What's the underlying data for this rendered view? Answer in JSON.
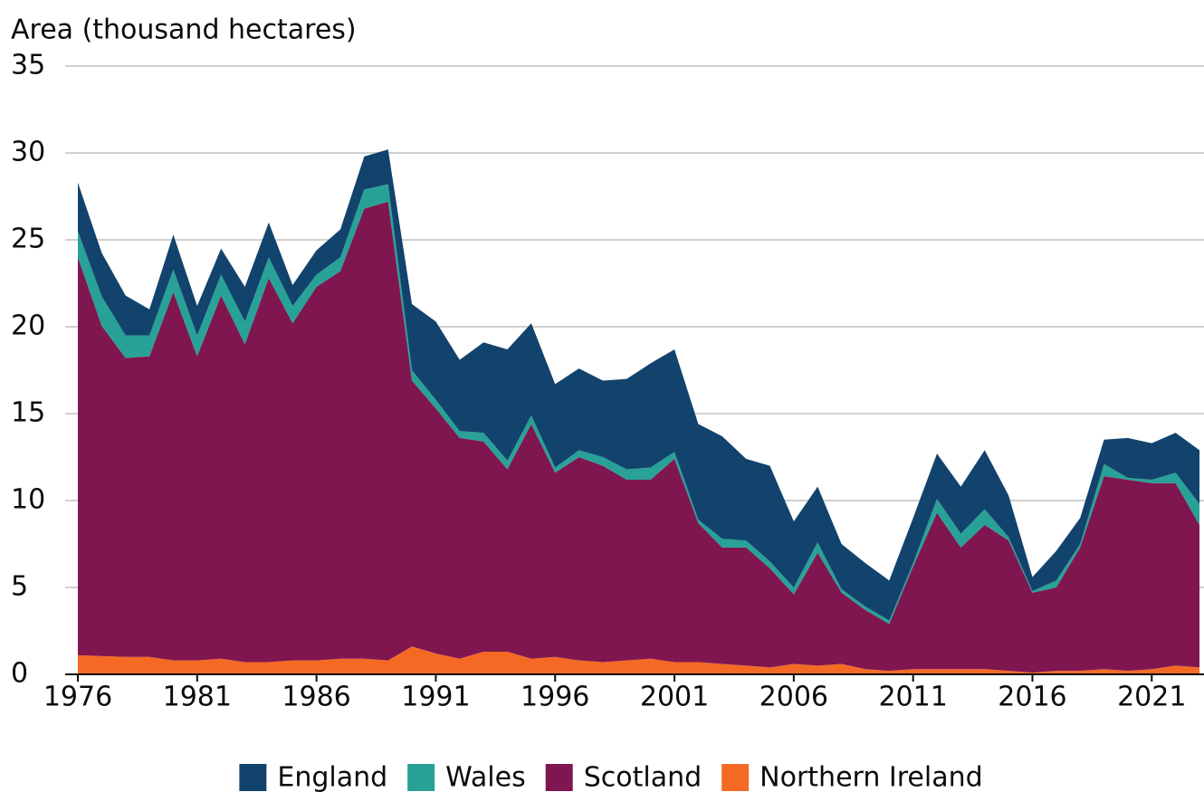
{
  "chart_data": {
    "type": "stacked_area",
    "y_label": "Area (thousand hectares)",
    "x": [
      1976,
      1977,
      1978,
      1979,
      1980,
      1981,
      1982,
      1983,
      1984,
      1985,
      1986,
      1987,
      1988,
      1989,
      1990,
      1991,
      1992,
      1993,
      1994,
      1995,
      1996,
      1997,
      1998,
      1999,
      2000,
      2001,
      2002,
      2003,
      2004,
      2005,
      2006,
      2007,
      2008,
      2009,
      2010,
      2011,
      2012,
      2013,
      2014,
      2015,
      2016,
      2017,
      2018,
      2019,
      2020,
      2021,
      2022,
      2023
    ],
    "series": [
      {
        "name": "England",
        "color": "#12436d",
        "values": [
          2.8,
          2.5,
          2.3,
          1.5,
          2.0,
          1.7,
          1.5,
          2.0,
          2.0,
          1.2,
          1.4,
          1.6,
          1.9,
          2.0,
          3.8,
          4.5,
          4.1,
          5.2,
          6.4,
          5.3,
          4.8,
          4.7,
          4.4,
          5.2,
          6.0,
          5.9,
          5.5,
          5.9,
          4.7,
          5.5,
          3.8,
          3.2,
          2.6,
          2.5,
          2.3,
          2.6,
          2.6,
          2.7,
          3.4,
          2.4,
          0.8,
          1.7,
          1.5,
          1.4,
          2.3,
          2.1,
          2.3,
          3.1
        ]
      },
      {
        "name": "Wales",
        "color": "#28a197",
        "values": [
          1.5,
          1.7,
          1.3,
          1.2,
          1.3,
          1.2,
          1.2,
          1.3,
          1.2,
          1.0,
          0.7,
          0.8,
          1.1,
          1.0,
          0.6,
          0.5,
          0.4,
          0.5,
          0.5,
          0.5,
          0.3,
          0.4,
          0.5,
          0.6,
          0.7,
          0.4,
          0.2,
          0.5,
          0.4,
          0.4,
          0.4,
          0.6,
          0.2,
          0.2,
          0.2,
          0.2,
          0.8,
          0.8,
          0.9,
          0.2,
          0.1,
          0.4,
          0.2,
          0.7,
          0.1,
          0.2,
          0.6,
          1.2
        ]
      },
      {
        "name": "Scotland",
        "color": "#801650",
        "values": [
          22.9,
          19.0,
          17.2,
          17.3,
          21.2,
          17.5,
          20.9,
          18.3,
          22.1,
          19.4,
          21.5,
          22.3,
          25.9,
          26.4,
          15.3,
          14.1,
          12.7,
          12.1,
          10.5,
          13.5,
          10.6,
          11.7,
          11.3,
          10.4,
          10.3,
          11.7,
          8.0,
          6.7,
          6.8,
          5.7,
          4.0,
          6.5,
          4.1,
          3.4,
          2.7,
          5.9,
          9.0,
          7.0,
          8.3,
          7.5,
          4.6,
          4.8,
          7.1,
          11.1,
          11.0,
          10.7,
          10.5,
          8.2
        ]
      },
      {
        "name": "Northern Ireland",
        "color": "#f46a25",
        "values": [
          1.1,
          1.05,
          1.0,
          1.0,
          0.8,
          0.8,
          0.9,
          0.7,
          0.7,
          0.8,
          0.8,
          0.9,
          0.9,
          0.8,
          1.6,
          1.2,
          0.9,
          1.3,
          1.3,
          0.9,
          1.0,
          0.8,
          0.7,
          0.8,
          0.9,
          0.7,
          0.7,
          0.6,
          0.5,
          0.4,
          0.6,
          0.5,
          0.6,
          0.3,
          0.2,
          0.3,
          0.3,
          0.3,
          0.3,
          0.2,
          0.1,
          0.2,
          0.2,
          0.3,
          0.2,
          0.3,
          0.5,
          0.4
        ]
      }
    ],
    "xlim": [
      1976,
      2023
    ],
    "xticks": [
      1976,
      1981,
      1986,
      1991,
      1996,
      2001,
      2006,
      2011,
      2016,
      2021
    ],
    "ylim": [
      0,
      35
    ],
    "yticks": [
      0,
      5,
      10,
      15,
      20,
      25,
      30,
      35
    ],
    "grid": true,
    "legend": "bottom"
  }
}
